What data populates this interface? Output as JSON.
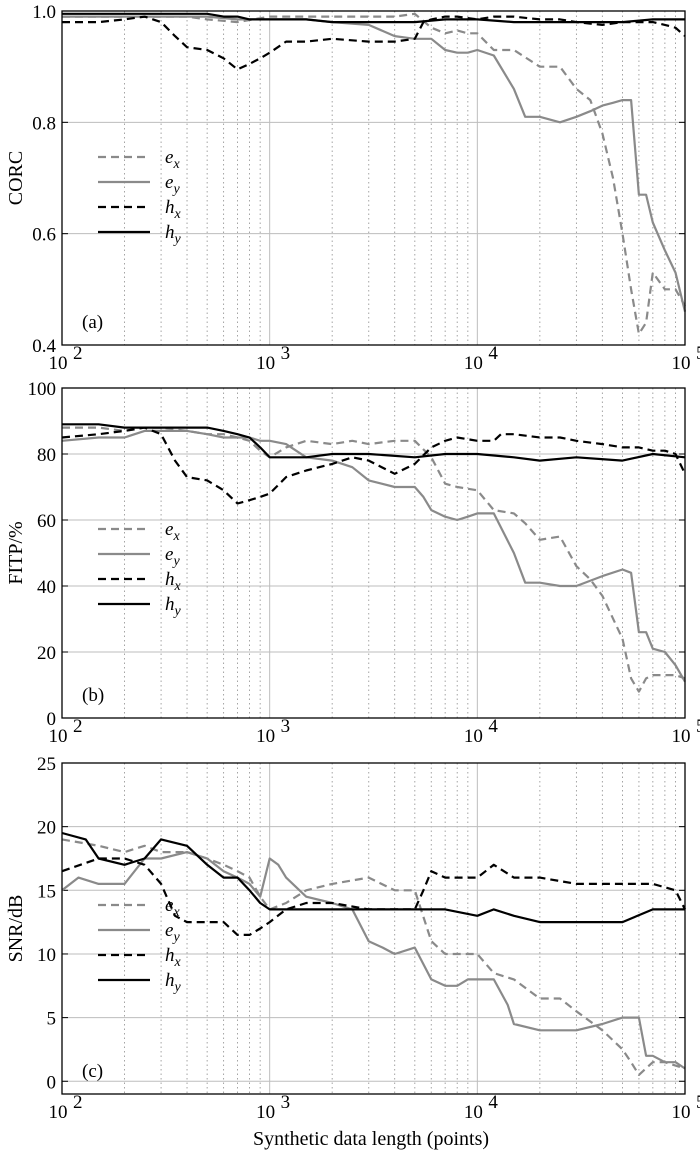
{
  "figure": {
    "xlabel": "Synthetic data length (points)",
    "x_tick_labels": [
      "10",
      "10",
      "10",
      "10"
    ],
    "x_tick_exponents": [
      "2",
      "3",
      "4",
      "5"
    ]
  },
  "chart_data": [
    {
      "type": "line",
      "panel": "(a)",
      "ylabel": "CORC",
      "xscale": "log",
      "xlim": [
        100,
        100000
      ],
      "ylim": [
        0.4,
        1.0
      ],
      "yticks": [
        "0.4",
        "0.6",
        "0.8",
        "1.0"
      ],
      "legend": {
        "location": "left",
        "entries": [
          [
            "e",
            "x"
          ],
          [
            "e",
            "y"
          ],
          [
            "h",
            "x"
          ],
          [
            "h",
            "y"
          ]
        ]
      },
      "series": [
        {
          "name": "ex",
          "x": [
            100,
            150,
            200,
            300,
            400,
            500,
            700,
            1000,
            1500,
            2000,
            3000,
            4000,
            5000,
            6000,
            7000,
            8000,
            9000,
            10000,
            12000,
            15000,
            20000,
            25000,
            30000,
            35000,
            40000,
            45000,
            50000,
            55000,
            60000,
            65000,
            70000,
            80000,
            90000,
            100000
          ],
          "values": [
            0.99,
            0.99,
            0.99,
            0.99,
            0.99,
            0.985,
            0.98,
            0.99,
            0.99,
            0.99,
            0.99,
            0.99,
            0.995,
            0.97,
            0.96,
            0.965,
            0.96,
            0.96,
            0.93,
            0.93,
            0.9,
            0.9,
            0.86,
            0.84,
            0.78,
            0.7,
            0.6,
            0.5,
            0.42,
            0.44,
            0.53,
            0.5,
            0.5,
            0.47
          ]
        },
        {
          "name": "ey",
          "x": [
            100,
            150,
            200,
            300,
            400,
            500,
            700,
            1000,
            1500,
            2000,
            3000,
            4000,
            5000,
            6000,
            7000,
            8000,
            9000,
            10000,
            12000,
            15000,
            17000,
            20000,
            25000,
            30000,
            35000,
            40000,
            45000,
            50000,
            55000,
            60000,
            65000,
            70000,
            80000,
            90000,
            100000
          ],
          "values": [
            0.99,
            0.99,
            0.99,
            0.99,
            0.99,
            0.99,
            0.985,
            0.985,
            0.985,
            0.98,
            0.975,
            0.955,
            0.95,
            0.95,
            0.93,
            0.925,
            0.925,
            0.93,
            0.92,
            0.86,
            0.81,
            0.81,
            0.8,
            0.81,
            0.82,
            0.83,
            0.835,
            0.84,
            0.84,
            0.67,
            0.67,
            0.62,
            0.57,
            0.53,
            0.46
          ]
        },
        {
          "name": "hx",
          "x": [
            100,
            150,
            200,
            250,
            300,
            350,
            400,
            500,
            600,
            700,
            800,
            900,
            1000,
            1200,
            1500,
            2000,
            3000,
            4000,
            5000,
            5500,
            6000,
            7000,
            8000,
            10000,
            12000,
            15000,
            20000,
            25000,
            30000,
            40000,
            50000,
            70000,
            80000,
            90000,
            100000
          ],
          "values": [
            0.98,
            0.98,
            0.985,
            0.99,
            0.98,
            0.955,
            0.935,
            0.93,
            0.915,
            0.895,
            0.905,
            0.915,
            0.925,
            0.945,
            0.945,
            0.95,
            0.945,
            0.945,
            0.95,
            0.98,
            0.985,
            0.99,
            0.99,
            0.985,
            0.99,
            0.99,
            0.985,
            0.985,
            0.98,
            0.975,
            0.98,
            0.98,
            0.975,
            0.97,
            0.955
          ]
        },
        {
          "name": "hy",
          "x": [
            100,
            200,
            300,
            400,
            500,
            600,
            700,
            800,
            900,
            1000,
            1200,
            1500,
            2000,
            3000,
            5000,
            7000,
            10000,
            15000,
            20000,
            30000,
            50000,
            70000,
            100000
          ],
          "values": [
            0.995,
            0.995,
            0.995,
            0.995,
            0.995,
            0.99,
            0.99,
            0.985,
            0.985,
            0.985,
            0.985,
            0.985,
            0.98,
            0.98,
            0.98,
            0.985,
            0.985,
            0.98,
            0.98,
            0.98,
            0.98,
            0.985,
            0.985
          ]
        }
      ]
    },
    {
      "type": "line",
      "panel": "(b)",
      "ylabel": "FITP/%",
      "xscale": "log",
      "xlim": [
        100,
        100000
      ],
      "ylim": [
        0,
        100
      ],
      "yticks": [
        "0",
        "20",
        "40",
        "60",
        "80",
        "100"
      ],
      "legend": {
        "location": "left",
        "entries": [
          [
            "e",
            "x"
          ],
          [
            "e",
            "y"
          ],
          [
            "h",
            "x"
          ],
          [
            "h",
            "y"
          ]
        ]
      },
      "series": [
        {
          "name": "ex",
          "x": [
            100,
            150,
            200,
            250,
            300,
            400,
            500,
            600,
            700,
            800,
            900,
            1000,
            1200,
            1500,
            2000,
            2500,
            3000,
            4000,
            5000,
            6000,
            7000,
            8000,
            10000,
            12000,
            15000,
            17000,
            20000,
            25000,
            30000,
            35000,
            40000,
            50000,
            55000,
            60000,
            65000,
            70000,
            80000,
            90000,
            100000
          ],
          "values": [
            88,
            88,
            87,
            88,
            88,
            87,
            86,
            86,
            85,
            84,
            81,
            79,
            82,
            84,
            83,
            84,
            83,
            84,
            84,
            79,
            71,
            70,
            69,
            63,
            62,
            59,
            54,
            55,
            46,
            42,
            37,
            24,
            12,
            8,
            12,
            13,
            13,
            13,
            12
          ]
        },
        {
          "name": "ey",
          "x": [
            100,
            150,
            200,
            250,
            300,
            400,
            500,
            600,
            700,
            800,
            900,
            1000,
            1200,
            1500,
            2000,
            2500,
            3000,
            4000,
            5000,
            5500,
            6000,
            7000,
            8000,
            9000,
            10000,
            12000,
            15000,
            17000,
            20000,
            25000,
            30000,
            40000,
            50000,
            55000,
            60000,
            65000,
            70000,
            80000,
            90000,
            100000
          ],
          "values": [
            84,
            85,
            85,
            87,
            87,
            87,
            86,
            85,
            85,
            85,
            84,
            84,
            83,
            79,
            78,
            76,
            72,
            70,
            70,
            67,
            63,
            61,
            60,
            61,
            62,
            62,
            50,
            41,
            41,
            40,
            40,
            43,
            45,
            44,
            26,
            26,
            21,
            20,
            16,
            11
          ]
        },
        {
          "name": "hx",
          "x": [
            100,
            150,
            200,
            250,
            300,
            350,
            400,
            500,
            600,
            700,
            800,
            900,
            1000,
            1200,
            1500,
            2000,
            2500,
            3000,
            4000,
            5000,
            6000,
            7000,
            8000,
            10000,
            12000,
            13000,
            15000,
            20000,
            25000,
            30000,
            40000,
            50000,
            60000,
            70000,
            80000,
            90000,
            100000
          ],
          "values": [
            85,
            86,
            87,
            88,
            86,
            78,
            73,
            72,
            69,
            65,
            66,
            67,
            68,
            73,
            75,
            77,
            79,
            78,
            74,
            77,
            82,
            84,
            85,
            84,
            84,
            86,
            86,
            85,
            85,
            84,
            83,
            82,
            82,
            81,
            81,
            80,
            74
          ]
        },
        {
          "name": "hy",
          "x": [
            100,
            150,
            200,
            250,
            300,
            400,
            500,
            600,
            700,
            800,
            900,
            1000,
            1200,
            1500,
            2000,
            3000,
            5000,
            7000,
            10000,
            15000,
            20000,
            30000,
            50000,
            70000,
            100000
          ],
          "values": [
            89,
            89,
            88,
            88,
            88,
            88,
            88,
            87,
            86,
            85,
            82,
            79,
            79,
            79,
            80,
            80,
            79,
            80,
            80,
            79,
            78,
            79,
            78,
            80,
            79
          ]
        }
      ]
    },
    {
      "type": "line",
      "panel": "(c)",
      "ylabel": "SNR/dB",
      "xscale": "log",
      "xlim": [
        100,
        100000
      ],
      "ylim": [
        -1,
        25
      ],
      "yticks": [
        "0",
        "5",
        "10",
        "15",
        "20",
        "25"
      ],
      "legend": {
        "location": "left",
        "entries": [
          [
            "e",
            "x"
          ],
          [
            "e",
            "y"
          ],
          [
            "h",
            "x"
          ],
          [
            "h",
            "y"
          ]
        ]
      },
      "series": [
        {
          "name": "ex",
          "x": [
            100,
            150,
            200,
            250,
            300,
            400,
            500,
            600,
            700,
            800,
            900,
            1000,
            1200,
            1500,
            2000,
            3000,
            4000,
            5000,
            6000,
            7000,
            8000,
            10000,
            12000,
            15000,
            20000,
            25000,
            30000,
            40000,
            50000,
            55000,
            60000,
            70000,
            80000,
            100000
          ],
          "values": [
            19,
            18.5,
            18,
            18.5,
            18,
            18,
            17.5,
            17,
            16.5,
            16,
            14.5,
            13.5,
            14,
            15,
            15.5,
            16,
            15,
            15,
            11,
            10,
            10,
            10,
            8.5,
            8,
            6.5,
            6.5,
            5.5,
            4,
            2.5,
            1.5,
            0.5,
            1.5,
            1.5,
            1
          ]
        },
        {
          "name": "ey",
          "x": [
            100,
            120,
            150,
            200,
            250,
            300,
            400,
            500,
            600,
            700,
            800,
            900,
            1000,
            1100,
            1200,
            1500,
            2000,
            2500,
            3000,
            3500,
            4000,
            5000,
            6000,
            7000,
            8000,
            9000,
            10000,
            12000,
            14000,
            15000,
            20000,
            25000,
            30000,
            40000,
            50000,
            55000,
            60000,
            65000,
            70000,
            80000,
            90000,
            100000
          ],
          "values": [
            15,
            16,
            15.5,
            15.5,
            17.5,
            17.5,
            18,
            17.5,
            16.5,
            16,
            15.5,
            14.5,
            17.5,
            17,
            16,
            14.5,
            14,
            13.5,
            11,
            10.5,
            10,
            10.5,
            8,
            7.5,
            7.5,
            8,
            8,
            8,
            6,
            4.5,
            4,
            4,
            4,
            4.5,
            5,
            5,
            5,
            2,
            2,
            1.5,
            1.5,
            1
          ]
        },
        {
          "name": "hx",
          "x": [
            100,
            150,
            200,
            250,
            300,
            350,
            400,
            500,
            600,
            700,
            800,
            900,
            1000,
            1200,
            1500,
            2000,
            3000,
            5000,
            5500,
            6000,
            7000,
            10000,
            12000,
            15000,
            20000,
            30000,
            50000,
            70000,
            90000,
            100000
          ],
          "values": [
            16.5,
            17.5,
            17.5,
            17,
            15.5,
            13,
            12.5,
            12.5,
            12.5,
            11.5,
            11.5,
            12,
            12.5,
            13.5,
            14,
            14,
            13.5,
            13.5,
            15,
            16.5,
            16,
            16,
            17,
            16,
            16,
            15.5,
            15.5,
            15.5,
            15,
            13.5
          ]
        },
        {
          "name": "hy",
          "x": [
            100,
            130,
            150,
            200,
            250,
            300,
            400,
            500,
            600,
            700,
            800,
            900,
            1000,
            1200,
            1500,
            2000,
            3000,
            5000,
            7000,
            10000,
            12000,
            15000,
            20000,
            30000,
            50000,
            70000,
            100000
          ],
          "values": [
            19.5,
            19,
            17.5,
            17,
            17.5,
            19,
            18.5,
            17,
            16,
            16,
            15,
            14,
            13.5,
            13.5,
            13.5,
            13.5,
            13.5,
            13.5,
            13.5,
            13,
            13.5,
            13,
            12.5,
            12.5,
            12.5,
            13.5,
            13.5
          ]
        }
      ]
    }
  ]
}
